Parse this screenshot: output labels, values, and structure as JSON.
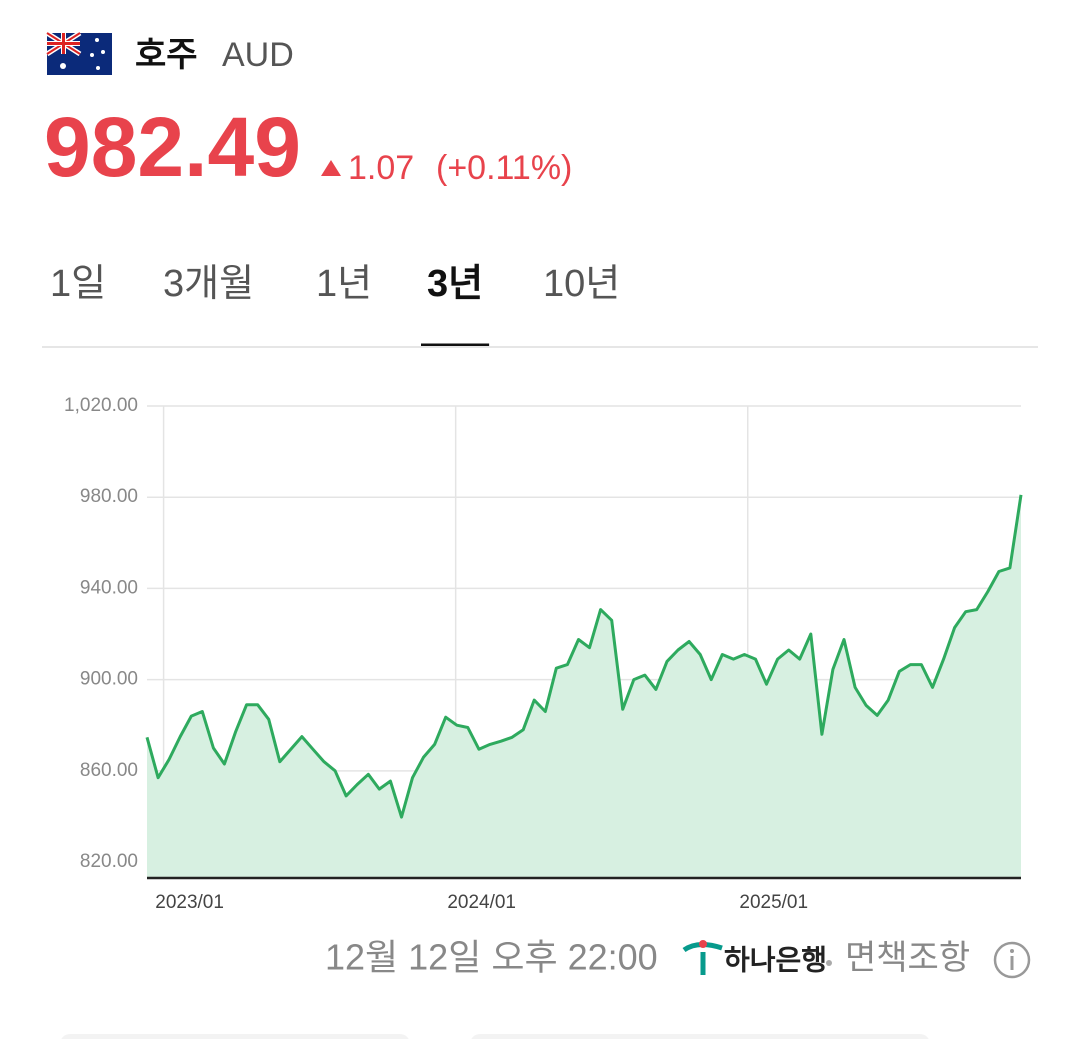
{
  "header": {
    "country": "호주",
    "currency": "AUD",
    "price": "982.49",
    "change": "1.07",
    "change_pct": "(+0.11%)"
  },
  "tabs": [
    {
      "label": "1일"
    },
    {
      "label": "3개월"
    },
    {
      "label": "1년"
    },
    {
      "label": "3년",
      "selected": true
    },
    {
      "label": "10년"
    }
  ],
  "chart_data": {
    "type": "area",
    "color": "#2eaa5e",
    "fill": "#d7f0e1",
    "values": [
      874.7,
      857,
      865,
      875,
      884,
      886,
      870,
      863,
      877,
      889,
      889,
      882.6,
      864,
      869.5,
      875,
      869.5,
      864,
      860,
      849,
      854,
      858.5,
      852,
      855.5,
      839.7,
      857,
      866,
      871.6,
      883.5,
      880,
      879,
      869.5,
      871.6,
      873,
      874.7,
      878,
      891,
      886,
      905,
      906.6,
      917.6,
      914,
      930.7,
      926,
      887,
      900,
      902,
      895.7,
      908,
      913,
      916.7,
      911,
      900,
      911,
      909,
      911,
      909,
      898,
      909,
      913,
      909,
      920,
      876,
      904.5,
      917.6,
      896.6,
      888.7,
      884.3,
      891,
      903.6,
      906.6,
      906.6,
      896.6,
      909,
      922.8,
      929.8,
      930.7,
      938.6,
      947.4,
      949,
      981
    ],
    "ylim": [
      813,
      1020
    ],
    "yticks": [
      {
        "value": 820,
        "label": "820.00"
      },
      {
        "value": 860,
        "label": "860.00"
      },
      {
        "value": 900,
        "label": "900.00"
      },
      {
        "value": 940,
        "label": "940.00"
      },
      {
        "value": 980,
        "label": "980.00"
      },
      {
        "value": 1020,
        "label": "1,020.00"
      }
    ],
    "xticks": [
      {
        "value": 1.5,
        "label": "2023/01"
      },
      {
        "value": 27.9,
        "label": "2024/01"
      },
      {
        "value": 54.3,
        "label": "2025/01"
      }
    ],
    "grid": true
  },
  "footer": {
    "timestamp": "12월 12일 오후 22:00",
    "bank": "하나은행",
    "disclaimer": "면책조항"
  }
}
